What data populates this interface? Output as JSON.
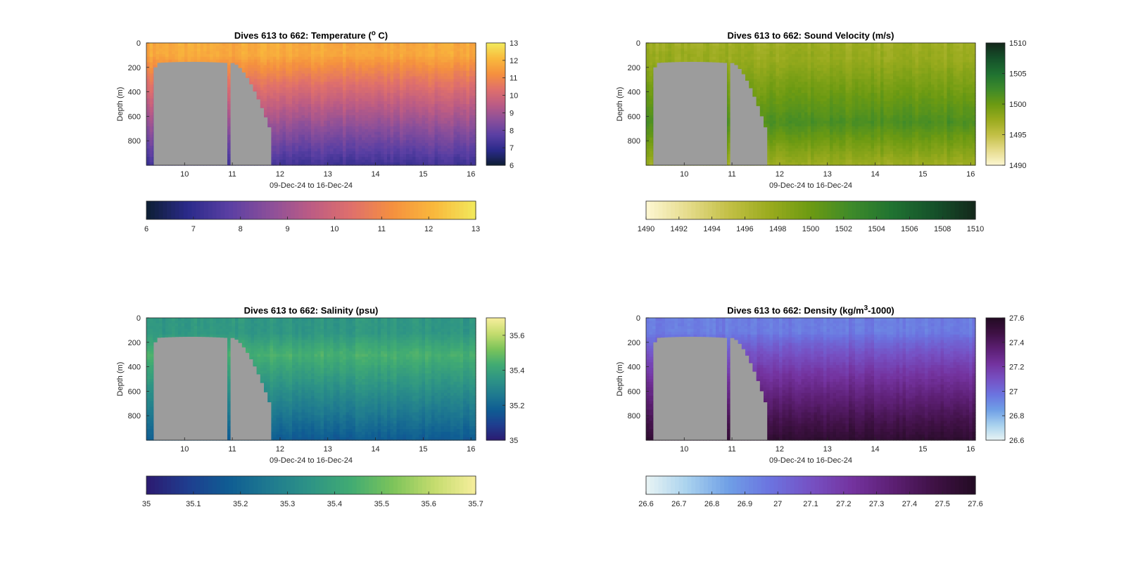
{
  "figure": {
    "background": "#ffffff",
    "mask_color": "#9c9c9c"
  },
  "chart_data": [
    {
      "type": "heatmap",
      "title_prefix": "Dives 613 to 662: Temperature (",
      "title_sup": "o",
      "title_suffix": " C)",
      "xlabel": "09-Dec-24 to 16-Dec-24",
      "ylabel": "Depth (m)",
      "xlim": [
        9.2,
        16.1
      ],
      "ylim": [
        1000,
        0
      ],
      "x_ticks": [
        "10",
        "11",
        "12",
        "13",
        "14",
        "15",
        "16"
      ],
      "y_ticks": [
        "0",
        "200",
        "400",
        "600",
        "800"
      ],
      "colorbar_range": [
        6,
        13
      ],
      "colorbar_ticks": [
        "6",
        "7",
        "8",
        "9",
        "10",
        "11",
        "12",
        "13"
      ],
      "colormap": [
        "#0d1e33",
        "#2a2a8a",
        "#5a3fa3",
        "#8b4f9a",
        "#bc5c84",
        "#e0706b",
        "#f5913e",
        "#f9b93c",
        "#f2e95c"
      ],
      "profile": {
        "top_value": 11.8,
        "bottom_value": 7.3,
        "thermocline_depth": 120
      },
      "horizontal_colorbar_ticks": [
        "6",
        "7",
        "8",
        "9",
        "10",
        "11",
        "12",
        "13"
      ]
    },
    {
      "type": "heatmap",
      "title_prefix": "Dives 613 to 662: Sound Velocity (m/s)",
      "title_sup": "",
      "title_suffix": "",
      "xlabel": "09-Dec-24 to 16-Dec-24",
      "ylabel": "Depth (m)",
      "xlim": [
        9.2,
        16.1
      ],
      "ylim": [
        1000,
        0
      ],
      "x_ticks": [
        "10",
        "11",
        "12",
        "13",
        "14",
        "15",
        "16"
      ],
      "y_ticks": [
        "0",
        "200",
        "400",
        "600",
        "800"
      ],
      "colorbar_range": [
        1490,
        1510
      ],
      "colorbar_ticks": [
        "1490",
        "1495",
        "1500",
        "1505",
        "1510"
      ],
      "colormap": [
        "#fdf7d3",
        "#e6dc8c",
        "#c3c046",
        "#9aab1e",
        "#6c9a12",
        "#3d8a2a",
        "#1f7231",
        "#15512a",
        "#14281b"
      ],
      "profile": {
        "top_value": 1497.5,
        "bottom_value": 1500.5,
        "mid_value": 1501.5
      },
      "horizontal_colorbar_ticks": [
        "1490",
        "1492",
        "1494",
        "1496",
        "1498",
        "1500",
        "1502",
        "1504",
        "1506",
        "1508",
        "1510"
      ]
    },
    {
      "type": "heatmap",
      "title_prefix": "Dives 613 to 662: Salinity (psu)",
      "title_sup": "",
      "title_suffix": "",
      "xlabel": "09-Dec-24 to 16-Dec-24",
      "ylabel": "Depth (m)",
      "xlim": [
        9.2,
        16.1
      ],
      "ylim": [
        1000,
        0
      ],
      "x_ticks": [
        "10",
        "11",
        "12",
        "13",
        "14",
        "15",
        "16"
      ],
      "y_ticks": [
        "0",
        "200",
        "400",
        "600",
        "800"
      ],
      "colorbar_range": [
        35,
        35.7
      ],
      "colorbar_ticks": [
        "35",
        "35.2",
        "35.4",
        "35.6"
      ],
      "colormap": [
        "#2c1a70",
        "#1f3d8f",
        "#0f5d93",
        "#1f7a90",
        "#2e9485",
        "#42ac72",
        "#7dc45a",
        "#c5dc6e",
        "#f6ee9c"
      ],
      "profile": {
        "top_value": 35.36,
        "mid_value": 35.45,
        "bottom_value": 35.19
      },
      "horizontal_colorbar_ticks": [
        "35",
        "35.1",
        "35.2",
        "35.3",
        "35.4",
        "35.5",
        "35.6",
        "35.7"
      ]
    },
    {
      "type": "heatmap",
      "title_prefix": "Dives 613 to 662: Density (kg/m",
      "title_sup": "3",
      "title_suffix": "-1000)",
      "xlabel": "09-Dec-24 to 16-Dec-24",
      "ylabel": "Depth (m)",
      "xlim": [
        9.2,
        16.1
      ],
      "ylim": [
        1000,
        0
      ],
      "x_ticks": [
        "10",
        "11",
        "12",
        "13",
        "14",
        "15",
        "16"
      ],
      "y_ticks": [
        "0",
        "200",
        "400",
        "600",
        "800"
      ],
      "colorbar_range": [
        26.6,
        27.6
      ],
      "colorbar_ticks": [
        "26.6",
        "26.8",
        "27",
        "27.2",
        "27.4",
        "27.6"
      ],
      "colormap": [
        "#e9f4f4",
        "#a9d2ee",
        "#6f9fe6",
        "#6b74e0",
        "#7651c4",
        "#74339f",
        "#5c1f73",
        "#3f1145",
        "#230b23"
      ],
      "profile": {
        "top_value": 26.95,
        "bottom_value": 27.52
      },
      "horizontal_colorbar_ticks": [
        "26.6",
        "26.7",
        "26.8",
        "26.9",
        "27",
        "27.1",
        "27.2",
        "27.3",
        "27.4",
        "27.5",
        "27.6"
      ]
    }
  ]
}
